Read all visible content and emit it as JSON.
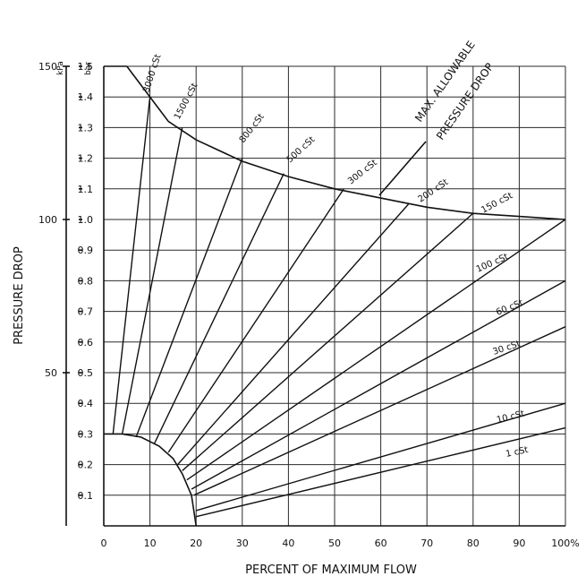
{
  "chart_data": {
    "type": "line",
    "xlabel": "PERCENT OF MAXIMUM FLOW",
    "ylabel": "PRESSURE DROP",
    "y_unit_bar": "bar",
    "y_unit_kpa": "kPa",
    "xlim": [
      0,
      100
    ],
    "ylim": [
      0,
      1.5
    ],
    "x_ticks": [
      "0",
      "10",
      "20",
      "30",
      "40",
      "50",
      "60",
      "70",
      "80",
      "90",
      "100%"
    ],
    "y_ticks_bar": [
      "0.1",
      "0.2",
      "0.3",
      "0.4",
      "0.5",
      "0.6",
      "0.7",
      "0.8",
      "0.9",
      "1.0",
      "1.1",
      "1.2",
      "1.3",
      "1.4",
      "1.5"
    ],
    "y_ticks_kpa": [
      "50",
      "100",
      "150"
    ],
    "grid": true,
    "max_allowable_curve": {
      "label_line1": "MAX. ALLOWABLE",
      "label_line2": "PRESSURE DROP",
      "x": [
        5,
        9,
        14,
        20,
        30,
        40,
        50,
        60,
        70,
        80,
        90,
        100
      ],
      "y": [
        1.5,
        1.42,
        1.32,
        1.26,
        1.19,
        1.14,
        1.1,
        1.07,
        1.04,
        1.02,
        1.01,
        1.0
      ]
    },
    "min_boundary_curve": {
      "x": [
        0,
        4,
        8,
        12,
        15,
        17,
        19,
        20
      ],
      "y": [
        0.3,
        0.3,
        0.29,
        0.26,
        0.22,
        0.17,
        0.1,
        0.0
      ]
    },
    "series": [
      {
        "name": "3000 cSt",
        "x": [
          2,
          10
        ],
        "y": [
          0.3,
          1.4
        ]
      },
      {
        "name": "1500 cSt",
        "x": [
          4,
          17
        ],
        "y": [
          0.3,
          1.3
        ]
      },
      {
        "name": "800 cSt",
        "x": [
          7,
          30
        ],
        "y": [
          0.29,
          1.2
        ]
      },
      {
        "name": "500 cSt",
        "x": [
          11,
          39
        ],
        "y": [
          0.27,
          1.15
        ]
      },
      {
        "name": "300 cSt",
        "x": [
          14,
          52
        ],
        "y": [
          0.24,
          1.1
        ]
      },
      {
        "name": "200 cSt",
        "x": [
          16,
          66
        ],
        "y": [
          0.2,
          1.05
        ]
      },
      {
        "name": "150 cSt",
        "x": [
          17,
          80
        ],
        "y": [
          0.18,
          1.02
        ]
      },
      {
        "name": "100 cSt",
        "x": [
          18,
          100
        ],
        "y": [
          0.15,
          1.0
        ]
      },
      {
        "name": "60 cSt",
        "x": [
          19,
          100
        ],
        "y": [
          0.12,
          0.8
        ]
      },
      {
        "name": "30 cSt",
        "x": [
          19.5,
          100
        ],
        "y": [
          0.1,
          0.65
        ]
      },
      {
        "name": "10 cSt",
        "x": [
          20,
          100
        ],
        "y": [
          0.05,
          0.4
        ]
      },
      {
        "name": "1 cSt",
        "x": [
          20,
          100
        ],
        "y": [
          0.03,
          0.32
        ]
      }
    ],
    "series_labels": [
      "3000 cSt",
      "1500 cSt",
      "800 cSt",
      "500 cSt",
      "300 cSt",
      "200 cSt",
      "150 cSt",
      "100 cSt",
      "60 cSt",
      "30 cSt",
      "10 cSt",
      "1 cSt"
    ]
  }
}
